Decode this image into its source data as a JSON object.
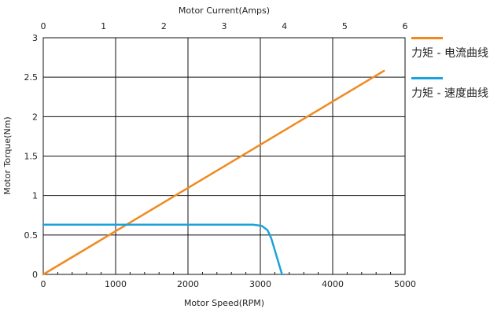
{
  "chart_data": {
    "type": "line",
    "title": "",
    "xlabel": "Motor Speed(RPM)",
    "x2label": "Motor Current(Amps)",
    "ylabel": "Motor Torque(Nm)",
    "xlim": [
      0,
      5000
    ],
    "x2lim": [
      0,
      6
    ],
    "ylim": [
      0,
      3
    ],
    "xticks": [
      "0",
      "1000",
      "2000",
      "3000",
      "4000",
      "5000"
    ],
    "x2ticks": [
      "0",
      "1",
      "2",
      "3",
      "4",
      "5",
      "6"
    ],
    "yticks": [
      "0",
      "0.5",
      "1",
      "1.5",
      "2",
      "2.5",
      "3"
    ],
    "grid": true,
    "legend_position": "right",
    "series": [
      {
        "name": "力矩 - 电流曲线",
        "axis": "top",
        "color": "#f0891f",
        "x": [
          0,
          5.65
        ],
        "y": [
          0,
          2.58
        ]
      },
      {
        "name": "力矩 - 速度曲线",
        "axis": "bottom",
        "color": "#1aa3db",
        "x": [
          0,
          1000,
          2000,
          2900,
          3020,
          3100,
          3150,
          3300
        ],
        "y": [
          0.63,
          0.63,
          0.63,
          0.63,
          0.615,
          0.56,
          0.46,
          0.0
        ]
      }
    ]
  }
}
